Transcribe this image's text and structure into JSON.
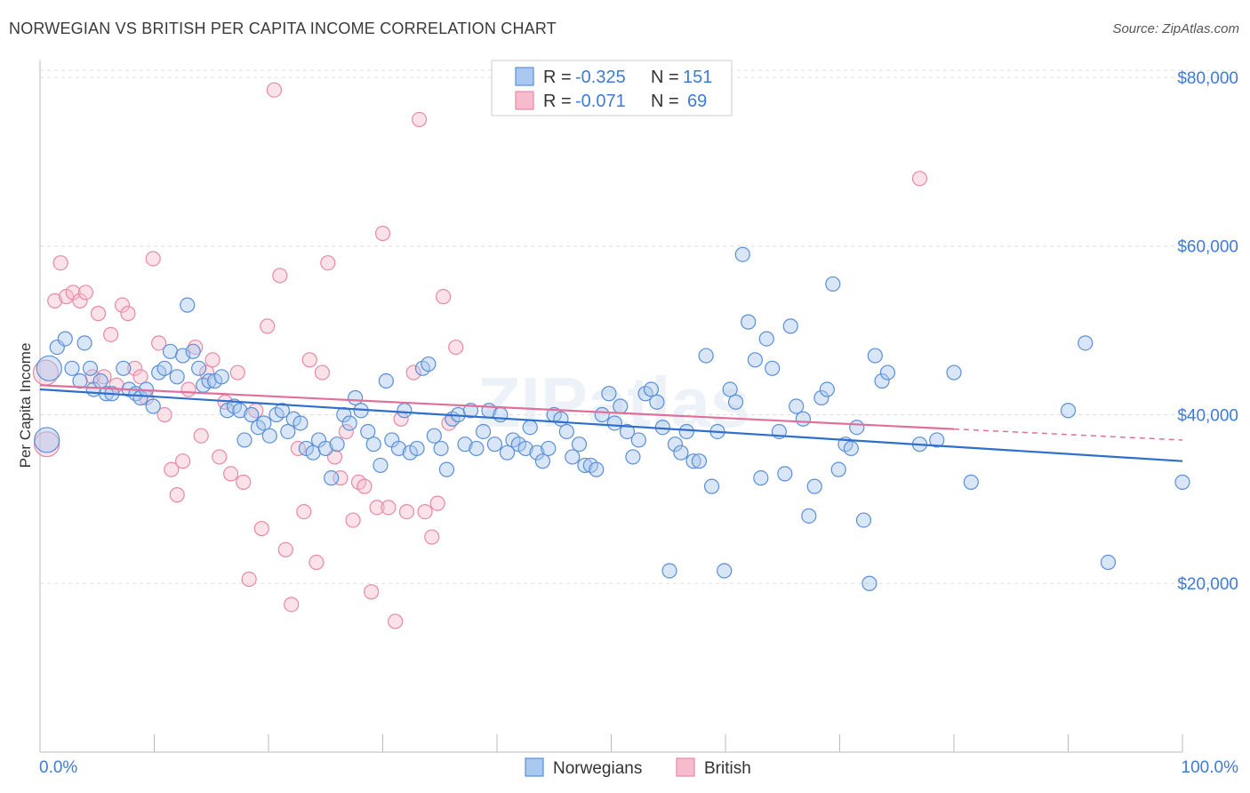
{
  "title": "NORWEGIAN VS BRITISH PER CAPITA INCOME CORRELATION CHART",
  "source": "Source: ZipAtlas.com",
  "watermark": "ZIPatlas",
  "colors": {
    "norwegians_fill": "#a9c8ef",
    "norwegians_stroke": "#5b8fd6",
    "norwegians_line": "#2f6fcc",
    "british_fill": "#f6bccd",
    "british_stroke": "#e68aa6",
    "british_line": "#e0709a",
    "axis_text": "#3d7bd6",
    "grid": "#dddddd"
  },
  "legend": {
    "rows": [
      {
        "r_label": "R =",
        "r_value": "-0.325",
        "n_label": "N =",
        "n_value": "151"
      },
      {
        "r_label": "R =",
        "r_value": "-0.071",
        "n_label": "N =",
        "n_value": "69"
      }
    ]
  },
  "chart_data": {
    "type": "scatter",
    "title": "NORWEGIAN VS BRITISH PER CAPITA INCOME CORRELATION CHART",
    "xlabel": "",
    "ylabel": "Per Capita Income",
    "xlim": [
      0,
      100
    ],
    "ylim": [
      0,
      82000
    ],
    "x_tick_labels": [
      "0.0%",
      "100.0%"
    ],
    "y_ticks": [
      20000,
      40000,
      60000,
      80000
    ],
    "y_tick_labels": [
      "$20,000",
      "$40,000",
      "$60,000",
      "$80,000"
    ],
    "grid": true,
    "legend_position": "top-center",
    "series": [
      {
        "name": "Norwegians",
        "trend": {
          "x": [
            0,
            100
          ],
          "y": [
            43000,
            34500
          ]
        },
        "points": [
          [
            0.8,
            45500
          ],
          [
            0.6,
            37000
          ],
          [
            1.5,
            48000
          ],
          [
            2.2,
            49000
          ],
          [
            2.8,
            45500
          ],
          [
            3.5,
            44000
          ],
          [
            3.9,
            48500
          ],
          [
            4.4,
            45500
          ],
          [
            4.7,
            43000
          ],
          [
            5.3,
            44000
          ],
          [
            5.8,
            42500
          ],
          [
            6.3,
            42500
          ],
          [
            7.3,
            45500
          ],
          [
            7.8,
            43000
          ],
          [
            8.4,
            42500
          ],
          [
            8.8,
            42000
          ],
          [
            9.3,
            43000
          ],
          [
            9.9,
            41000
          ],
          [
            10.4,
            45000
          ],
          [
            10.9,
            45500
          ],
          [
            11.4,
            47500
          ],
          [
            12.0,
            44500
          ],
          [
            12.5,
            47000
          ],
          [
            12.9,
            53000
          ],
          [
            13.4,
            47500
          ],
          [
            13.9,
            45500
          ],
          [
            14.3,
            43500
          ],
          [
            14.8,
            44000
          ],
          [
            15.3,
            44000
          ],
          [
            15.9,
            44500
          ],
          [
            16.4,
            40500
          ],
          [
            17.0,
            41000
          ],
          [
            17.5,
            40500
          ],
          [
            17.9,
            37000
          ],
          [
            18.5,
            40000
          ],
          [
            19.1,
            38500
          ],
          [
            19.6,
            39000
          ],
          [
            20.1,
            37500
          ],
          [
            20.7,
            40000
          ],
          [
            21.2,
            40500
          ],
          [
            21.7,
            38000
          ],
          [
            22.2,
            39500
          ],
          [
            22.8,
            39000
          ],
          [
            23.3,
            36000
          ],
          [
            23.9,
            35500
          ],
          [
            24.4,
            37000
          ],
          [
            25.0,
            36000
          ],
          [
            25.5,
            32500
          ],
          [
            26.0,
            36500
          ],
          [
            26.6,
            40000
          ],
          [
            27.1,
            39000
          ],
          [
            27.6,
            42000
          ],
          [
            28.1,
            40500
          ],
          [
            28.7,
            38000
          ],
          [
            29.2,
            36500
          ],
          [
            29.8,
            34000
          ],
          [
            30.3,
            44000
          ],
          [
            30.8,
            37000
          ],
          [
            31.4,
            36000
          ],
          [
            31.9,
            40500
          ],
          [
            32.4,
            35500
          ],
          [
            33.0,
            36000
          ],
          [
            33.5,
            45500
          ],
          [
            34.0,
            46000
          ],
          [
            34.5,
            37500
          ],
          [
            35.1,
            36000
          ],
          [
            35.6,
            33500
          ],
          [
            36.1,
            39500
          ],
          [
            36.6,
            40000
          ],
          [
            37.2,
            36500
          ],
          [
            37.7,
            40500
          ],
          [
            38.2,
            36000
          ],
          [
            38.8,
            38000
          ],
          [
            39.3,
            40500
          ],
          [
            39.8,
            36500
          ],
          [
            40.3,
            40000
          ],
          [
            40.9,
            35500
          ],
          [
            41.4,
            37000
          ],
          [
            41.9,
            36500
          ],
          [
            42.5,
            36000
          ],
          [
            42.9,
            38500
          ],
          [
            43.5,
            35500
          ],
          [
            44.0,
            34500
          ],
          [
            44.5,
            36000
          ],
          [
            45.0,
            40000
          ],
          [
            45.6,
            39500
          ],
          [
            46.1,
            38000
          ],
          [
            46.6,
            35000
          ],
          [
            47.2,
            36500
          ],
          [
            47.7,
            34000
          ],
          [
            48.2,
            34000
          ],
          [
            48.7,
            33500
          ],
          [
            49.2,
            40000
          ],
          [
            49.8,
            42500
          ],
          [
            50.3,
            39000
          ],
          [
            50.8,
            41000
          ],
          [
            51.4,
            38000
          ],
          [
            51.9,
            35000
          ],
          [
            52.4,
            37000
          ],
          [
            53.0,
            42500
          ],
          [
            53.5,
            43000
          ],
          [
            54.0,
            41500
          ],
          [
            54.5,
            38500
          ],
          [
            55.1,
            21500
          ],
          [
            55.6,
            36500
          ],
          [
            56.1,
            35500
          ],
          [
            56.6,
            38000
          ],
          [
            57.2,
            34500
          ],
          [
            57.7,
            34500
          ],
          [
            58.3,
            47000
          ],
          [
            58.8,
            31500
          ],
          [
            59.3,
            38000
          ],
          [
            59.9,
            21500
          ],
          [
            60.4,
            43000
          ],
          [
            60.9,
            41500
          ],
          [
            61.5,
            59000
          ],
          [
            62.0,
            51000
          ],
          [
            62.6,
            46500
          ],
          [
            63.1,
            32500
          ],
          [
            63.6,
            49000
          ],
          [
            64.1,
            45500
          ],
          [
            64.7,
            38000
          ],
          [
            65.2,
            33000
          ],
          [
            65.7,
            50500
          ],
          [
            66.2,
            41000
          ],
          [
            66.8,
            39500
          ],
          [
            67.3,
            28000
          ],
          [
            67.8,
            31500
          ],
          [
            68.4,
            42000
          ],
          [
            68.9,
            43000
          ],
          [
            69.4,
            55500
          ],
          [
            69.9,
            33500
          ],
          [
            70.5,
            36500
          ],
          [
            71.0,
            36000
          ],
          [
            71.5,
            38500
          ],
          [
            72.1,
            27500
          ],
          [
            72.6,
            20000
          ],
          [
            73.1,
            47000
          ],
          [
            73.7,
            44000
          ],
          [
            74.2,
            45000
          ],
          [
            77.0,
            36500
          ],
          [
            78.5,
            37000
          ],
          [
            80.0,
            45000
          ],
          [
            81.5,
            32000
          ],
          [
            90.0,
            40500
          ],
          [
            91.5,
            48500
          ],
          [
            93.5,
            22500
          ],
          [
            100.0,
            32000
          ]
        ]
      },
      {
        "name": "British",
        "trend": {
          "x": [
            0,
            80
          ],
          "y": [
            43500,
            38300
          ]
        },
        "trend_extension": {
          "x": [
            80,
            100
          ],
          "y": [
            38300,
            37000
          ]
        },
        "points": [
          [
            0.5,
            45000
          ],
          [
            0.6,
            36500
          ],
          [
            1.3,
            53500
          ],
          [
            1.8,
            58000
          ],
          [
            2.3,
            54000
          ],
          [
            2.9,
            54500
          ],
          [
            3.5,
            53500
          ],
          [
            4.0,
            54500
          ],
          [
            4.6,
            44500
          ],
          [
            5.1,
            52000
          ],
          [
            5.6,
            44500
          ],
          [
            6.2,
            49500
          ],
          [
            6.7,
            43500
          ],
          [
            7.2,
            53000
          ],
          [
            7.7,
            52000
          ],
          [
            8.3,
            45500
          ],
          [
            8.8,
            44500
          ],
          [
            9.3,
            42000
          ],
          [
            9.9,
            58500
          ],
          [
            10.4,
            48500
          ],
          [
            10.9,
            40000
          ],
          [
            11.5,
            33500
          ],
          [
            12.0,
            30500
          ],
          [
            12.5,
            34500
          ],
          [
            13.0,
            43000
          ],
          [
            13.6,
            48000
          ],
          [
            14.1,
            37500
          ],
          [
            14.6,
            45000
          ],
          [
            15.1,
            46500
          ],
          [
            15.7,
            35000
          ],
          [
            16.2,
            41500
          ],
          [
            16.7,
            33000
          ],
          [
            17.3,
            45000
          ],
          [
            17.8,
            32000
          ],
          [
            18.3,
            20500
          ],
          [
            18.9,
            40500
          ],
          [
            19.4,
            26500
          ],
          [
            19.9,
            50500
          ],
          [
            20.5,
            78500
          ],
          [
            21.0,
            56500
          ],
          [
            21.5,
            24000
          ],
          [
            22.0,
            17500
          ],
          [
            22.6,
            36000
          ],
          [
            23.1,
            28500
          ],
          [
            23.6,
            46500
          ],
          [
            24.2,
            22500
          ],
          [
            24.7,
            45000
          ],
          [
            25.2,
            58000
          ],
          [
            25.8,
            35000
          ],
          [
            26.3,
            32500
          ],
          [
            26.8,
            38000
          ],
          [
            27.4,
            27500
          ],
          [
            27.9,
            32000
          ],
          [
            28.4,
            31500
          ],
          [
            29.0,
            19000
          ],
          [
            29.5,
            29000
          ],
          [
            30.0,
            61500
          ],
          [
            30.5,
            29000
          ],
          [
            31.1,
            15500
          ],
          [
            31.6,
            39500
          ],
          [
            32.1,
            28500
          ],
          [
            32.7,
            45000
          ],
          [
            33.2,
            75000
          ],
          [
            33.7,
            28500
          ],
          [
            34.3,
            25500
          ],
          [
            34.8,
            29500
          ],
          [
            35.3,
            54000
          ],
          [
            35.8,
            39000
          ],
          [
            36.4,
            48000
          ],
          [
            77.0,
            68000
          ]
        ]
      }
    ]
  },
  "bottom_legend": [
    {
      "label": "Norwegians"
    },
    {
      "label": "British"
    }
  ]
}
